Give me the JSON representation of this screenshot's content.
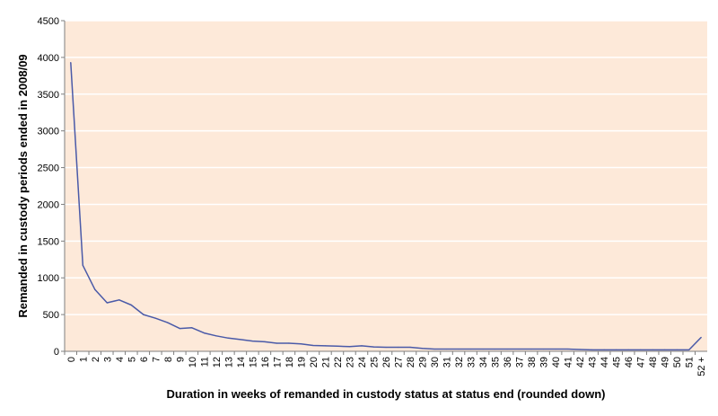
{
  "chart_data": {
    "type": "line",
    "title": "",
    "xlabel": "Duration in weeks of remanded in custody status at status end (rounded down)",
    "ylabel": "Remanded in custody periods ended in 2008/09",
    "ylim": [
      0,
      4500
    ],
    "yticks": [
      "0",
      "500",
      "1000",
      "1500",
      "2000",
      "2500",
      "3000",
      "3500",
      "4000",
      "4500"
    ],
    "grid": "horizontal",
    "colors": {
      "plot_bg": "#fde9d9",
      "line": "#4a5aa8",
      "grid": "#ffffff",
      "axis": "#7f7f7f"
    },
    "categories": [
      "0",
      "1",
      "2",
      "3",
      "4",
      "5",
      "6",
      "7",
      "8",
      "9",
      "10",
      "11",
      "12",
      "13",
      "14",
      "15",
      "16",
      "17",
      "18",
      "19",
      "20",
      "21",
      "22",
      "23",
      "24",
      "25",
      "26",
      "27",
      "28",
      "29",
      "30",
      "31",
      "32",
      "33",
      "34",
      "35",
      "36",
      "37",
      "38",
      "39",
      "40",
      "41",
      "42",
      "43",
      "44",
      "45",
      "46",
      "47",
      "48",
      "49",
      "50",
      "51",
      "52 +"
    ],
    "series": [
      {
        "name": "",
        "values": [
          3930,
          1170,
          840,
          660,
          700,
          630,
          500,
          450,
          390,
          310,
          320,
          250,
          210,
          180,
          160,
          140,
          130,
          110,
          110,
          100,
          80,
          75,
          70,
          65,
          75,
          60,
          55,
          55,
          55,
          40,
          30,
          30,
          30,
          30,
          30,
          30,
          30,
          30,
          30,
          30,
          30,
          30,
          25,
          20,
          20,
          20,
          20,
          20,
          20,
          20,
          20,
          20,
          190
        ]
      }
    ]
  }
}
